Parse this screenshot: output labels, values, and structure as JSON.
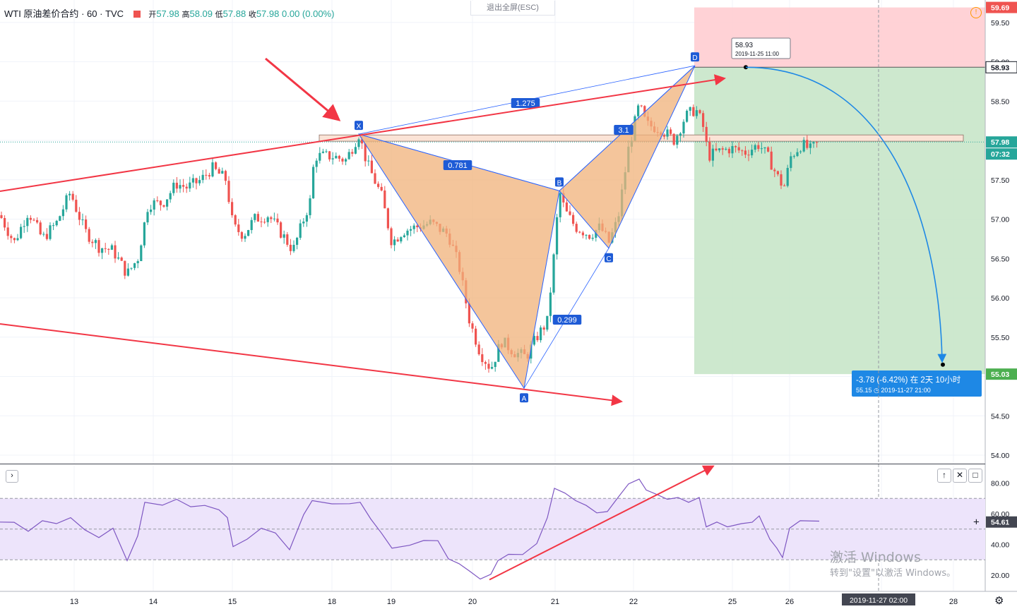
{
  "header": {
    "symbol": "WTI 原油差价合约",
    "interval": "60",
    "source": "TVC",
    "open_label": "开",
    "open": "57.98",
    "high_label": "高",
    "high": "58.09",
    "low_label": "低",
    "low": "57.88",
    "close_label": "收",
    "close": "57.98",
    "change": "0.00 (0.00%)"
  },
  "fullscreen_hint": "退出全屏(ESC)",
  "colors": {
    "up": "#26a69a",
    "down": "#ef5350",
    "pattern_fill": "#f0b27a",
    "pattern_line": "#2962ff",
    "annotation": "#f23645",
    "projection": "#1e88e5",
    "stop_zone": "#ffcdd2",
    "target_zone": "#c8e6c9",
    "rsi": "#7e57c2"
  },
  "chart_data": {
    "type": "candlestick",
    "price_axis": {
      "min": 54.0,
      "max": 59.69,
      "ticks": [
        "59.50",
        "59.00",
        "58.50",
        "58.00",
        "57.50",
        "57.00",
        "56.50",
        "56.00",
        "55.50",
        "55.00",
        "54.50",
        "54.00"
      ]
    },
    "time_axis": {
      "labels": [
        "13",
        "14",
        "15",
        "18",
        "19",
        "20",
        "21",
        "22",
        "25",
        "26",
        "27",
        "28"
      ],
      "crosshair_label": "2019-11-27   02:00"
    },
    "price_labels": {
      "top": "59.69",
      "d_level": "58.93",
      "last": "57.98",
      "countdown": "07:32",
      "target": "55.03"
    },
    "harmonic_pattern": {
      "points": [
        {
          "name": "X",
          "price": 58.08
        },
        {
          "name": "A",
          "price": 54.85
        },
        {
          "name": "B",
          "price": 57.36
        },
        {
          "name": "C",
          "price": 56.63
        },
        {
          "name": "D",
          "price": 58.95
        }
      ],
      "ratios": [
        "0.781",
        "0.299",
        "1.275",
        "3.1"
      ]
    },
    "position": {
      "entry": 58.93,
      "entry_tooltip_price": "58.93",
      "entry_tooltip_time": "2019-11-25 11:00",
      "stop": 59.69,
      "target": 55.03
    },
    "projection": {
      "label": "-3.78 (-6.42%) 在 2天 10小时",
      "sublabel": "55.15 ◷ 2019-11-27   21:00"
    },
    "rsi": {
      "axis_ticks": [
        "80.00",
        "60.00",
        "40.00",
        "20.00"
      ],
      "value": "54.61",
      "upper": 70,
      "lower": 30
    }
  },
  "indicator_buttons": [
    "↑",
    "✕",
    "□"
  ],
  "windows_watermark": {
    "line1": "激活 Windows",
    "line2": "转到\"设置\"以激活 Windows。"
  }
}
